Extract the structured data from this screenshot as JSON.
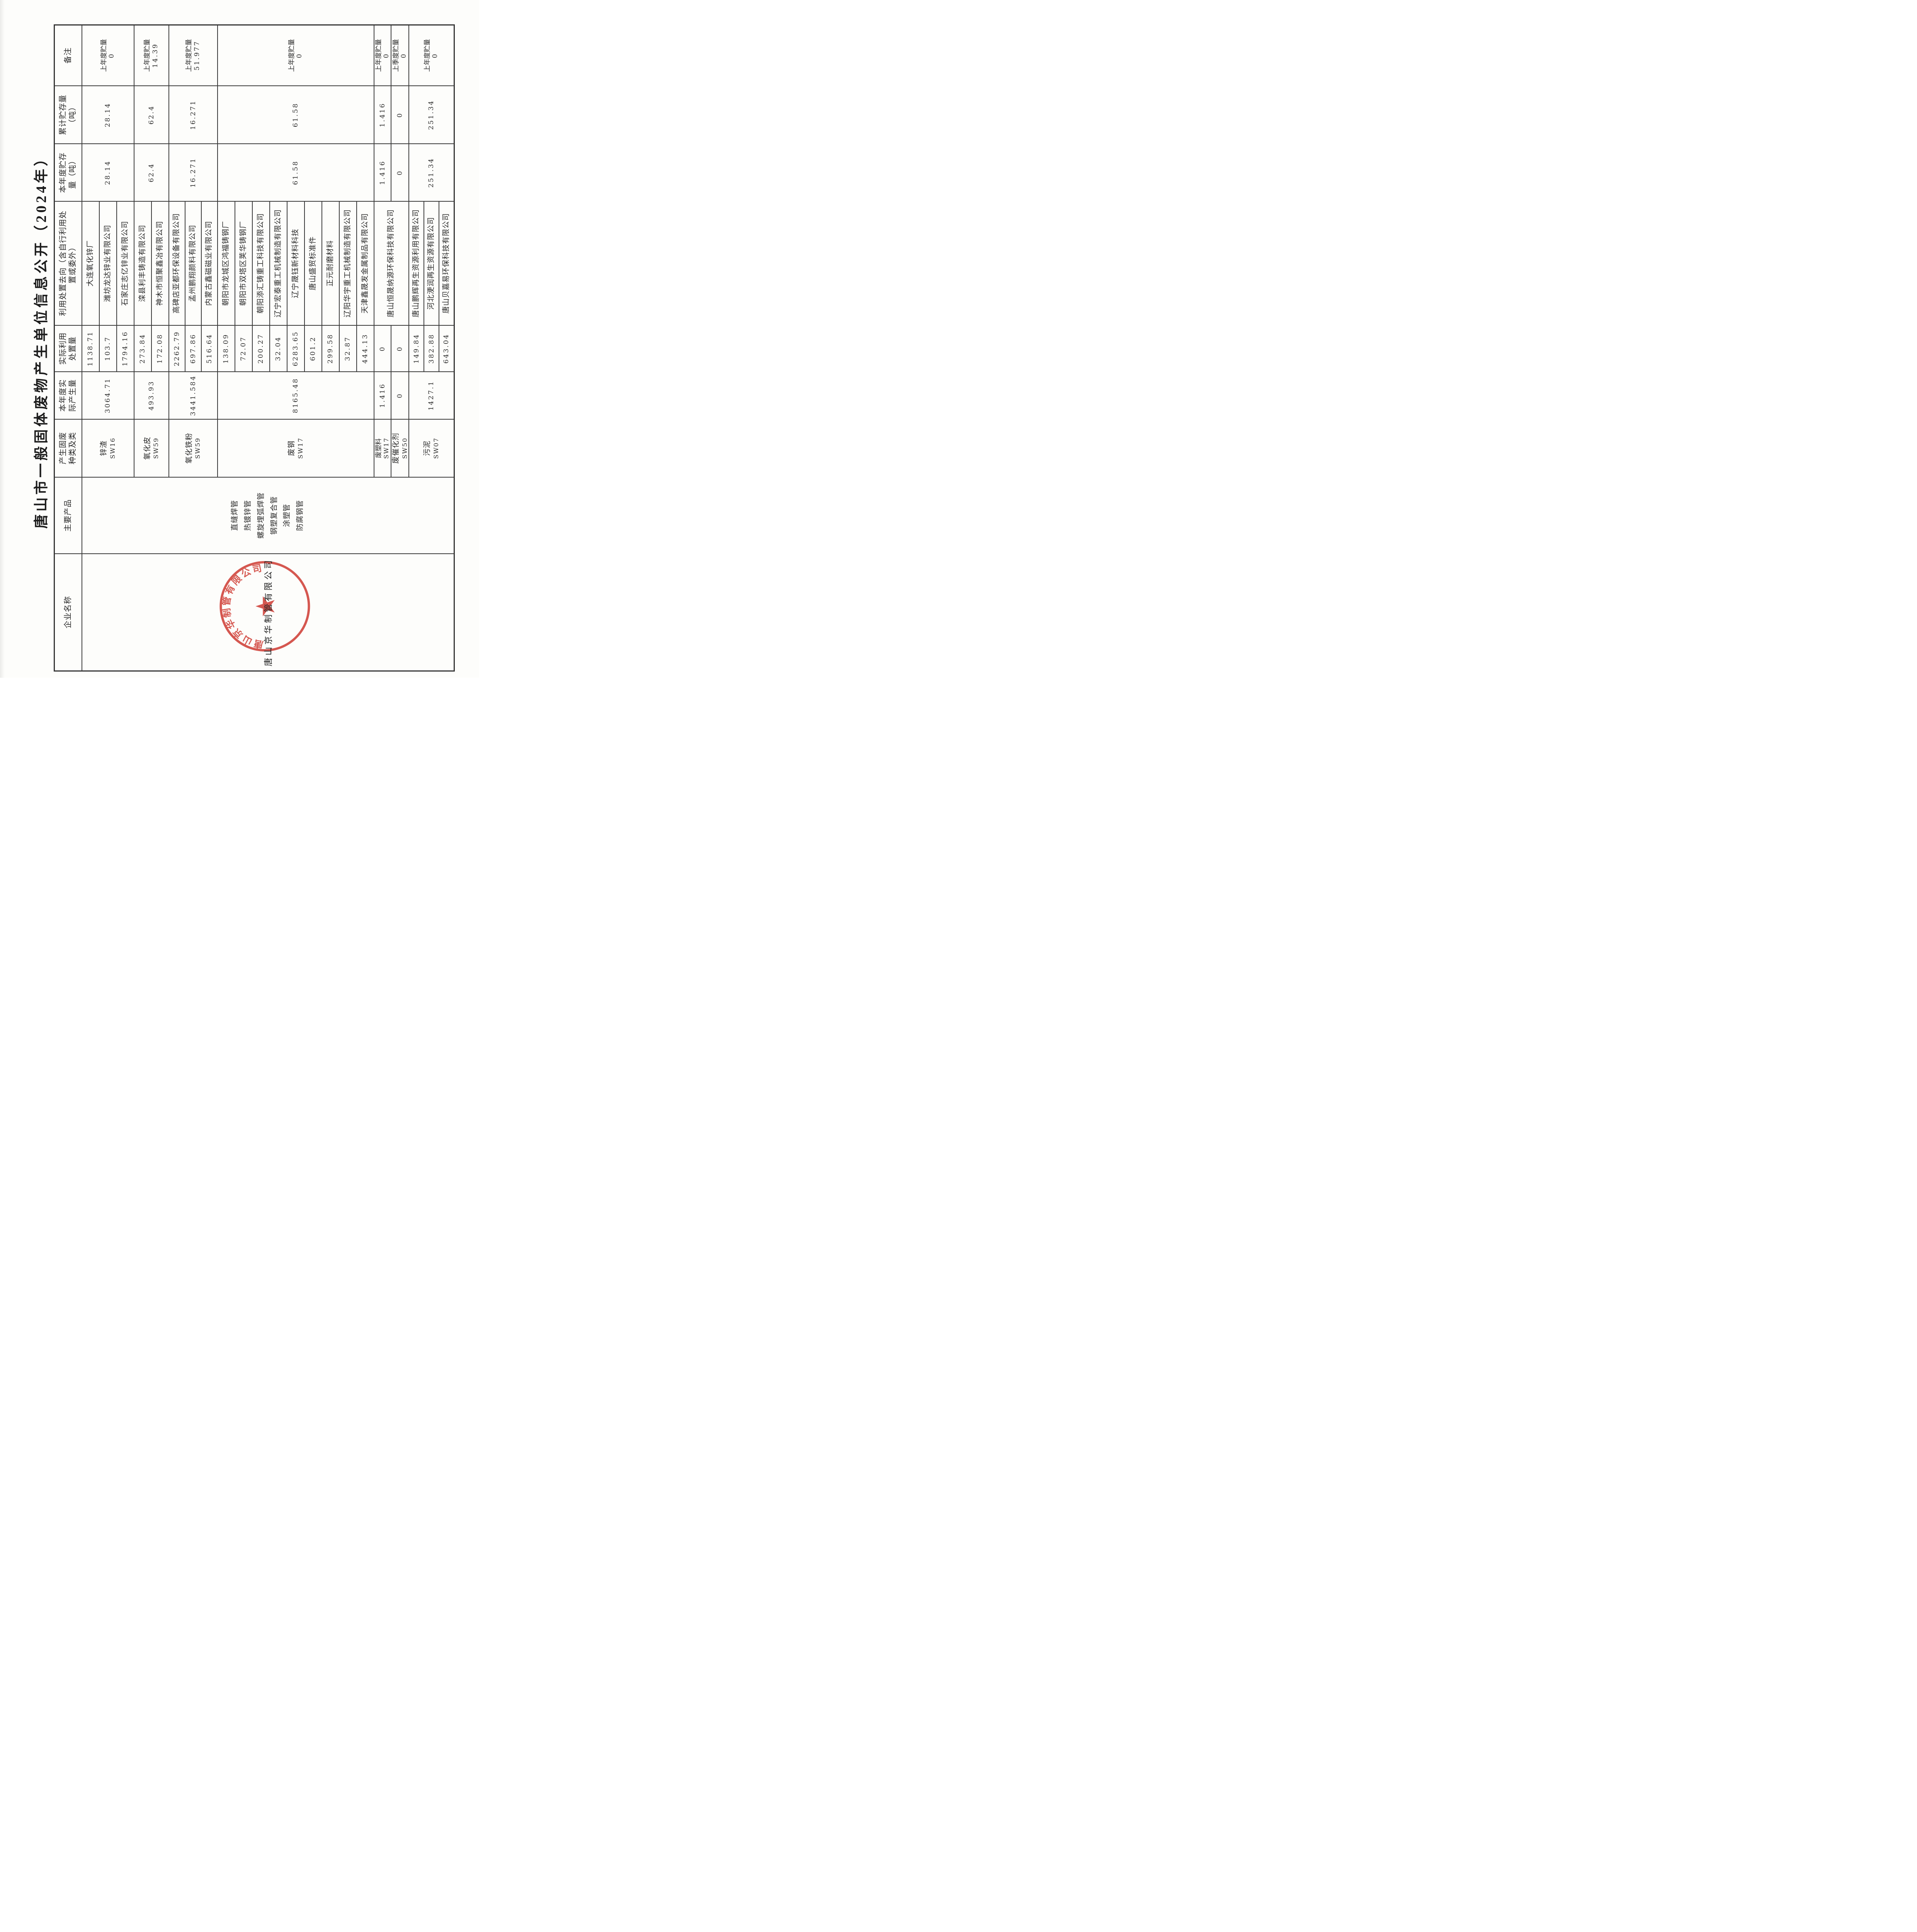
{
  "title": "唐山市一般固体废物产生单位信息公开（2024年）",
  "columns": [
    {
      "id": "company",
      "lines": [
        "企业名称"
      ]
    },
    {
      "id": "products",
      "lines": [
        "主要产品"
      ]
    },
    {
      "id": "waste-type",
      "lines": [
        "产生固废",
        "种类及类"
      ]
    },
    {
      "id": "produced",
      "lines": [
        "本年度实",
        "际产生量"
      ]
    },
    {
      "id": "disposed",
      "lines": [
        "实际利用",
        "处置量"
      ]
    },
    {
      "id": "destination",
      "lines": [
        "利用处置去向（含自行利用处",
        "置或委外）"
      ]
    },
    {
      "id": "year-storage",
      "lines": [
        "本年度贮存",
        "量（吨）"
      ]
    },
    {
      "id": "total-storage",
      "lines": [
        "累计贮存量",
        "（吨）"
      ]
    },
    {
      "id": "remark",
      "lines": [
        "备注"
      ]
    }
  ],
  "company": {
    "name": "唐山京华制管有限公司",
    "seal_arc_text": "唐山京华制管有限公司",
    "seal_star": "★"
  },
  "products": [
    "直缝焊管",
    "热镀锌管",
    "螺旋埋弧焊管",
    "钢塑复合管",
    "涂塑管",
    "防腐钢管"
  ],
  "rows": [
    {
      "type": "锌渣",
      "code": "SW16",
      "produced": "3064.71",
      "year_storage": "28.14",
      "total_storage": "28.14",
      "remark": [
        "上年度贮量",
        "0"
      ],
      "disposals": [
        [
          "大连氧化锌厂",
          "1138.71"
        ],
        [
          "潍坊龙达锌业有限公司",
          "103.7"
        ],
        [
          "石家庄志亿锌业有限公司",
          "1794.16"
        ]
      ]
    },
    {
      "type": "氧化皮",
      "code": "SW59",
      "produced": "493.93",
      "year_storage": "62.4",
      "total_storage": "62.4",
      "remark": [
        "上年度贮量",
        "14.39"
      ],
      "disposals": [
        [
          "滦县利丰铸造有限公司",
          "273.84"
        ],
        [
          "神木市恒聚鑫冶有限公司",
          "172.08"
        ]
      ]
    },
    {
      "type": "氧化铁粉",
      "code": "SW59",
      "produced": "3441.584",
      "year_storage": "16.271",
      "total_storage": "16.271",
      "remark": [
        "上年度贮量",
        "51.977"
      ],
      "disposals": [
        [
          "高碑店亚都环保设备有限公司",
          "2262.79"
        ],
        [
          "孟州鹏翔颜料有限公司",
          "697.86"
        ],
        [
          "内蒙古鑫磁磁业有限公司",
          "516.64"
        ]
      ]
    },
    {
      "type": "废钢",
      "code": "SW17",
      "produced": "8165.48",
      "year_storage": "61.58",
      "total_storage": "61.58",
      "remark": [
        "上年度贮量",
        "0"
      ],
      "disposals": [
        [
          "朝阳市龙城区鸿福铸钢厂",
          "138.09"
        ],
        [
          "朝阳市双塔区荚华铸钢厂",
          "72.07"
        ],
        [
          "朝阳添汇铸重工科技有限公司",
          "200.27"
        ],
        [
          "辽宁宏泰重工机械制造有限公司",
          "32.04"
        ],
        [
          "辽宁晟钰新材料科技",
          "6283.65"
        ],
        [
          "唐山盛贸标准件",
          "601.2"
        ],
        [
          "正元耐磨材料",
          "299.58"
        ],
        [
          "辽阳华宇重工机械制造有限公司",
          "32.87"
        ],
        [
          "天津鑫晟发金属制品有限公司",
          "444.13"
        ]
      ]
    },
    {
      "type": "废塑料",
      "code": "SW17",
      "produced": "1.416",
      "year_storage": "1.416",
      "total_storage": "1.416",
      "remark": [
        "上年度贮量",
        "0"
      ],
      "destination_merged_rows": 2,
      "disposals": [
        [
          "唐山恒晟纳源环保科技有限公司",
          "0"
        ]
      ]
    },
    {
      "type": "废催化剂",
      "code": "SW50",
      "produced": "0",
      "year_storage": "0",
      "total_storage": "0",
      "remark": [
        "上季度贮量",
        "0"
      ],
      "disposals": [
        [
          null,
          "0"
        ]
      ]
    },
    {
      "type": "污泥",
      "code": "SW07",
      "produced": "1427.1",
      "year_storage": "251.34",
      "total_storage": "251.34",
      "remark": [
        "上年度贮量",
        "0"
      ],
      "disposals": [
        [
          "唐山鹏辉再生资源利用有限公司",
          "149.84"
        ],
        [
          "河北浭润再生资源有限公司",
          "382.88"
        ],
        [
          "唐山贝嘉易环保科技有限公司",
          "643.04"
        ]
      ]
    }
  ],
  "colors": {
    "ink": "#2b2b2b",
    "line": "#3a3a3a",
    "seal_red": "#d24a42",
    "paper": "#fdfdfb"
  }
}
